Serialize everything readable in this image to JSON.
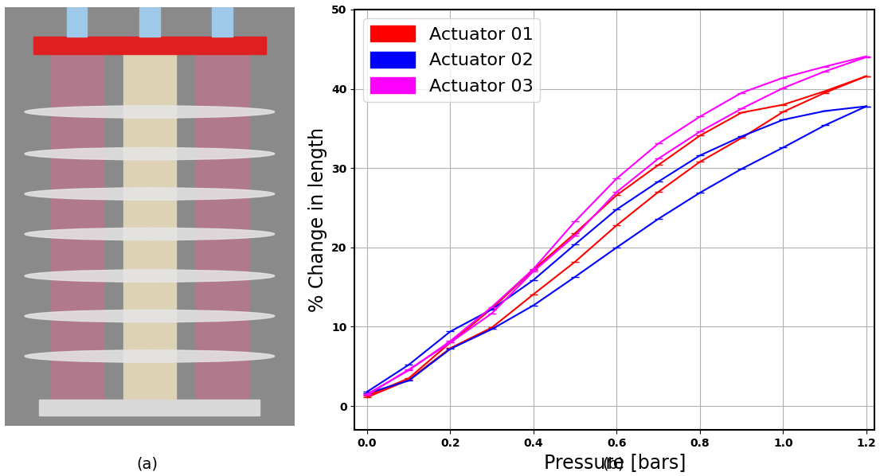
{
  "captions": [
    "(a)",
    "(b)"
  ],
  "chart_data": {
    "type": "line",
    "x_label": "Pressure [bars]",
    "y_label": "% Change in length",
    "x": [
      0.0,
      0.1,
      0.2,
      0.3,
      0.4,
      0.5,
      0.6,
      0.7,
      0.8,
      0.9,
      1.0,
      1.1,
      1.2
    ],
    "series": [
      {
        "name": "Actuator 01",
        "color": "#ff0000",
        "values": [
          1.1,
          3.3,
          7.3,
          9.9,
          14.1,
          18.2,
          22.8,
          27.0,
          30.8,
          33.8,
          37.1,
          39.5,
          41.6
        ]
      },
      {
        "name": "Actuator 01",
        "color": "#ff0000",
        "values": [
          1.3,
          3.5,
          8.0,
          12.3,
          17.2,
          21.8,
          26.6,
          30.4,
          34.1,
          37.0,
          38.0,
          39.7,
          41.6
        ]
      },
      {
        "name": "Actuator 02",
        "color": "#0000ff",
        "values": [
          1.6,
          3.2,
          7.2,
          9.7,
          12.7,
          16.3,
          20.0,
          23.6,
          26.9,
          29.9,
          32.6,
          35.4,
          37.8
        ]
      },
      {
        "name": "Actuator 02",
        "color": "#0000ff",
        "values": [
          1.8,
          5.2,
          9.4,
          12.2,
          15.9,
          20.4,
          24.8,
          28.3,
          31.6,
          34.0,
          36.1,
          37.2,
          37.8
        ]
      },
      {
        "name": "Actuator 03",
        "color": "#ff00ff",
        "values": [
          1.4,
          4.6,
          8.0,
          11.7,
          17.0,
          21.5,
          27.0,
          31.2,
          34.6,
          37.5,
          40.1,
          42.2,
          44.0
        ]
      },
      {
        "name": "Actuator 03",
        "color": "#ff00ff",
        "values": [
          1.5,
          4.5,
          8.2,
          12.5,
          17.3,
          23.3,
          28.7,
          33.1,
          36.5,
          39.5,
          41.4,
          42.8,
          44.1
        ]
      }
    ],
    "xlim": [
      -0.03,
      1.22
    ],
    "xticks": [
      {
        "value": 0,
        "label": "0.0"
      },
      0.2,
      0.4,
      0.6,
      0.8,
      {
        "value": 1,
        "label": "1.0"
      },
      1.2
    ],
    "ylim": [
      -3,
      50
    ],
    "yticks": [
      0,
      10,
      20,
      30,
      40,
      50
    ],
    "grid": true,
    "legend": "upper left",
    "marker": "_",
    "line_style": "solid"
  }
}
